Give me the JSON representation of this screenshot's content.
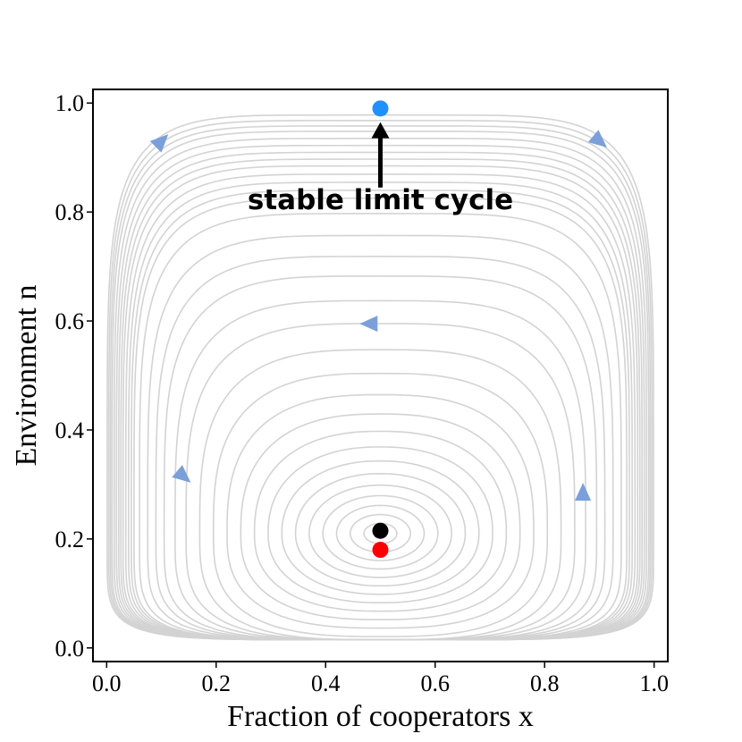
{
  "chart_data": {
    "type": "line",
    "xlabel": "Fraction of cooperators x",
    "ylabel": "Environment n",
    "xlim": [
      -0.025,
      1.025
    ],
    "ylim": [
      -0.025,
      1.025
    ],
    "x_ticks": [
      0.0,
      0.2,
      0.4,
      0.6,
      0.8,
      1.0
    ],
    "x_tick_labels": [
      "0.0",
      "0.2",
      "0.4",
      "0.6",
      "0.8",
      "1.0"
    ],
    "y_ticks": [
      0.0,
      0.2,
      0.4,
      0.6,
      0.8,
      1.0
    ],
    "y_tick_labels": [
      "0.0",
      "0.2",
      "0.4",
      "0.6",
      "0.8",
      "1.0"
    ],
    "grid": false,
    "legend": "none",
    "trajectories": {
      "center": [
        0.5,
        0.21
      ],
      "inner_half_widths": [
        0.03,
        0.055,
        0.08,
        0.105,
        0.13,
        0.155,
        0.18,
        0.205,
        0.23,
        0.255,
        0.28,
        0.305,
        0.33,
        0.355,
        0.375,
        0.395,
        0.41,
        0.425,
        0.44,
        0.45
      ],
      "band_half_widths": [
        0.455,
        0.46,
        0.465,
        0.47,
        0.474,
        0.478,
        0.482,
        0.486,
        0.49,
        0.493,
        0.496,
        0.499
      ],
      "top_extent": [
        0.55,
        0.978
      ],
      "color": "#d3d3d3"
    },
    "flow_arrows": [
      {
        "x": 0.1,
        "y": 0.93,
        "direction": "up-right"
      },
      {
        "x": 0.9,
        "y": 0.93,
        "direction": "down-right"
      },
      {
        "x": 0.48,
        "y": 0.595,
        "direction": "left"
      },
      {
        "x": 0.14,
        "y": 0.315,
        "direction": "down-right"
      },
      {
        "x": 0.87,
        "y": 0.285,
        "direction": "up"
      }
    ],
    "arrow_color": "#7b9fd8",
    "points": [
      {
        "x": 0.5,
        "y": 0.99,
        "color": "#1e90ff"
      },
      {
        "x": 0.5,
        "y": 0.215,
        "color": "#000000"
      },
      {
        "x": 0.5,
        "y": 0.18,
        "color": "#ff0000"
      }
    ],
    "annotation": {
      "text": "stable limit cycle",
      "text_x": 0.5,
      "text_y": 0.805,
      "arrow_from": [
        0.5,
        0.845
      ],
      "arrow_to": [
        0.5,
        0.965
      ]
    }
  }
}
